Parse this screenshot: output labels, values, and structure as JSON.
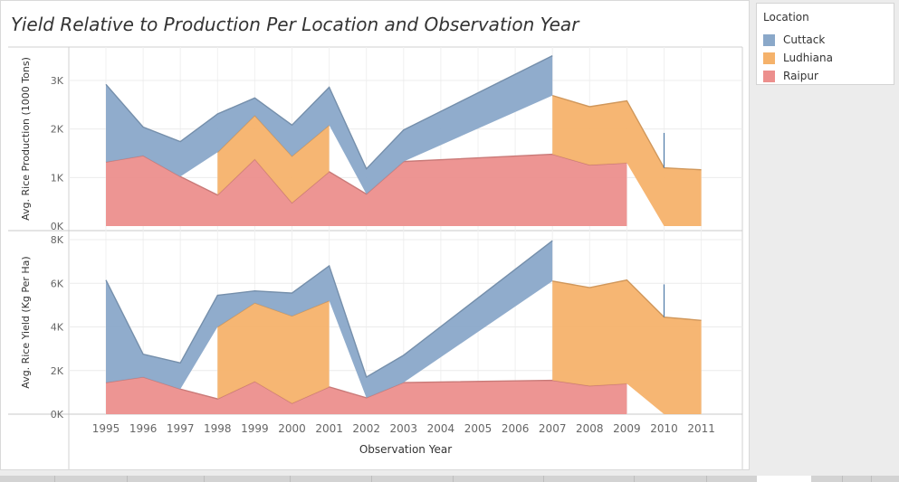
{
  "title": "Yield Relative to Production Per Location and Observation Year",
  "colors": {
    "Cuttack": "#8aa8c9",
    "Ludhiana": "#f5b26b",
    "Raipur": "#ec8f8d"
  },
  "legend": {
    "title": "Location",
    "items": [
      {
        "label": "Cuttack",
        "color": "#8aa8c9"
      },
      {
        "label": "Ludhiana",
        "color": "#f5b26b"
      },
      {
        "label": "Raipur",
        "color": "#ec8f8d"
      }
    ]
  },
  "chart_data": {
    "type": "area",
    "stacked": true,
    "x": [
      "1995",
      "1996",
      "1997",
      "1998",
      "1999",
      "2000",
      "2001",
      "2002",
      "2003",
      "2004",
      "2005",
      "2006",
      "2007",
      "2008",
      "2009",
      "2010",
      "2011"
    ],
    "xlabel": "Observation Year",
    "panels": [
      {
        "ylabel": "Avg. Rice Production (1000 Tons)",
        "yticks": [
          "0K",
          "1K",
          "2K",
          "3K"
        ],
        "ylim": [
          0,
          3500
        ],
        "series": [
          {
            "name": "Raipur",
            "values": [
              1320,
              1450,
              1020,
              640,
              1380,
              480,
              1120,
              660,
              1330,
              null,
              null,
              null,
              1480,
              1260,
              1300,
              null,
              null
            ]
          },
          {
            "name": "Ludhiana",
            "values": [
              null,
              null,
              null,
              880,
              900,
              960,
              960,
              null,
              null,
              null,
              null,
              null,
              1210,
              1200,
              1280,
              1200,
              1160
            ]
          },
          {
            "name": "Cuttack",
            "values": [
              1600,
              590,
              720,
              790,
              360,
              640,
              780,
              520,
              650,
              null,
              null,
              null,
              820,
              null,
              null,
              720,
              null
            ]
          }
        ]
      },
      {
        "ylabel": "Avg. Rice Yield (Kg Per Ha)",
        "yticks": [
          "0K",
          "2K",
          "4K",
          "6K",
          "8K"
        ],
        "ylim": [
          0,
          8000
        ],
        "series": [
          {
            "name": "Raipur",
            "values": [
              1450,
              1700,
              1150,
              700,
              1500,
              500,
              1250,
              750,
              1450,
              null,
              null,
              null,
              1550,
              1300,
              1400,
              null,
              null
            ]
          },
          {
            "name": "Ludhiana",
            "values": [
              null,
              null,
              null,
              3300,
              3600,
              4000,
              3950,
              null,
              null,
              null,
              null,
              null,
              4550,
              4500,
              4750,
              4450,
              4300
            ]
          },
          {
            "name": "Cuttack",
            "values": [
              4700,
              1050,
              1200,
              1450,
              550,
              1050,
              1600,
              950,
              1250,
              null,
              null,
              null,
              1850,
              null,
              null,
              1500,
              null
            ]
          }
        ]
      }
    ]
  }
}
